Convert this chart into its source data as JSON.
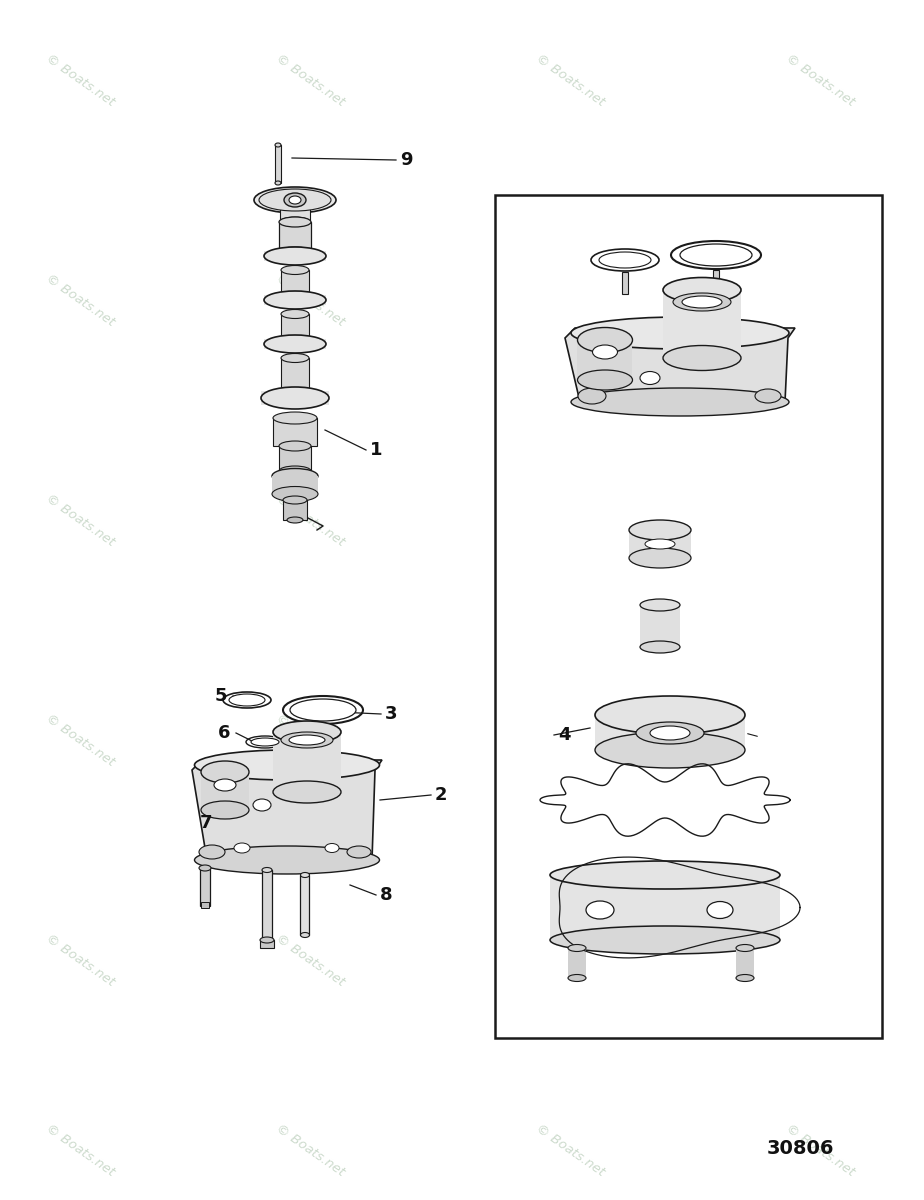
{
  "bg_color": "#ffffff",
  "line_color": "#1a1a1a",
  "watermark_color": "#b8ccb8",
  "watermark_text": "© Boats.net",
  "diagram_number": "30806",
  "fig_w": 9.24,
  "fig_h": 12.0,
  "dpi": 100
}
